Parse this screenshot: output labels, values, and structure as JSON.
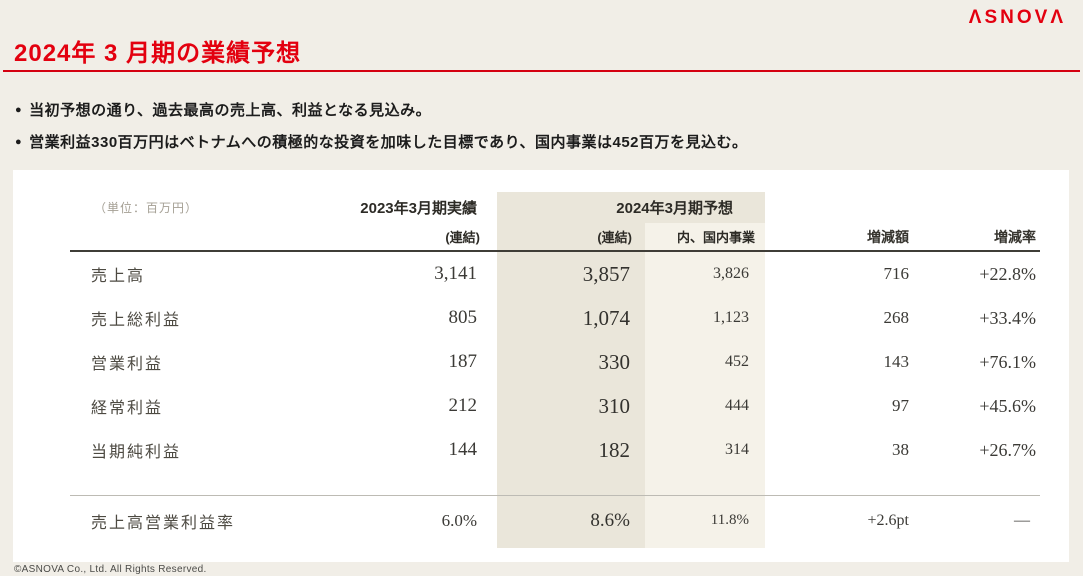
{
  "brand": {
    "logo_text": "ΛSNOVΛ"
  },
  "header": {
    "title": "2024年 3 月期の業績予想"
  },
  "bullets": [
    {
      "marker": "●",
      "text": "当初予想の通り、過去最高の売上高、利益となる見込み。"
    },
    {
      "marker": "●",
      "text": "営業利益330百万円はベトナムへの積極的な投資を加味した目標であり、国内事業は452百万を見込む。"
    }
  ],
  "table": {
    "unit_label": "（単位：百万円）",
    "col_2023": {
      "title": "2023年3月期実績",
      "sub": "(連結)"
    },
    "col_2024": {
      "title": "2024年3月期予想",
      "sub_consolidated": "(連結)",
      "sub_domestic": "内、国内事業"
    },
    "col_change_amount": "増減額",
    "col_change_rate": "増減率",
    "rows": [
      {
        "label": "売上高",
        "fy2023": "3,141",
        "fy2024": "3,857",
        "domestic": "3,826",
        "change": "716",
        "rate": "+22.8%"
      },
      {
        "label": "売上総利益",
        "fy2023": "805",
        "fy2024": "1,074",
        "domestic": "1,123",
        "change": "268",
        "rate": "+33.4%"
      },
      {
        "label": "営業利益",
        "fy2023": "187",
        "fy2024": "330",
        "domestic": "452",
        "change": "143",
        "rate": "+76.1%"
      },
      {
        "label": "経常利益",
        "fy2023": "212",
        "fy2024": "310",
        "domestic": "444",
        "change": "97",
        "rate": "+45.6%"
      },
      {
        "label": "当期純利益",
        "fy2023": "144",
        "fy2024": "182",
        "domestic": "314",
        "change": "38",
        "rate": "+26.7%"
      }
    ],
    "summary_row": {
      "label": "売上高営業利益率",
      "fy2023": "6.0%",
      "fy2024": "8.6%",
      "domestic": "11.8%",
      "change": "+2.6pt",
      "rate": "—"
    }
  },
  "footer": {
    "copyright": "©ASNOVA Co., Ltd. All Rights Reserved."
  },
  "colors": {
    "accent_red": "#E3000F",
    "page_bg": "#F1EEE7",
    "strip_dark": "#EAE6DA",
    "strip_light": "#F5F2E9"
  }
}
